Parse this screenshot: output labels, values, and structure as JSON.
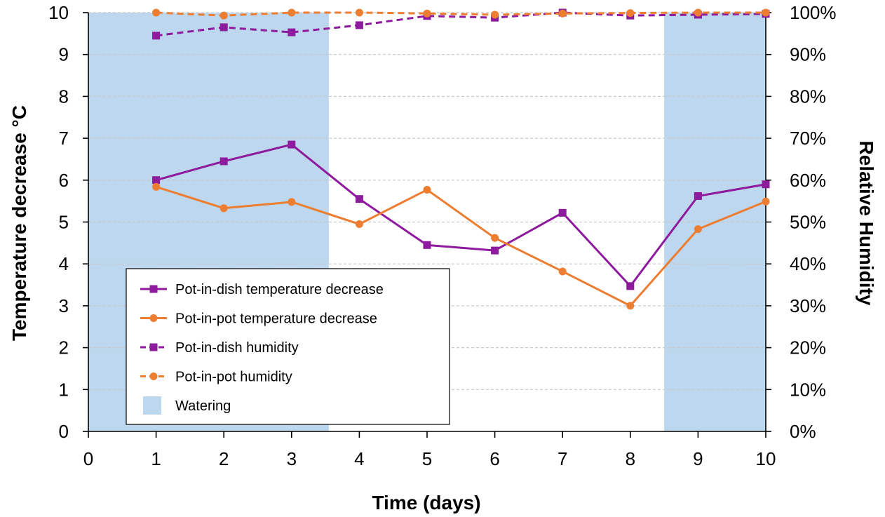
{
  "chart_data": {
    "type": "line",
    "title": "",
    "xlabel": "Time (days)",
    "ylabel": "Temperature decrease  °C",
    "y2label": "Relative Humidity",
    "xlim": [
      0,
      10
    ],
    "ylim": [
      0,
      10
    ],
    "y2lim": [
      0,
      100
    ],
    "x_ticks": [
      0,
      1,
      2,
      3,
      4,
      5,
      6,
      7,
      8,
      9,
      10
    ],
    "y_ticks": [
      0,
      1,
      2,
      3,
      4,
      5,
      6,
      7,
      8,
      9,
      10
    ],
    "y2_ticks": [
      "0%",
      "10%",
      "20%",
      "30%",
      "40%",
      "50%",
      "60%",
      "70%",
      "80%",
      "90%",
      "100%"
    ],
    "grid": "horizontal dashed",
    "legend_position": "lower-left",
    "shaded_regions": [
      {
        "name": "Watering",
        "x_start": 0,
        "x_end": 3.55,
        "color": "#bdd7ee"
      },
      {
        "name": "Watering",
        "x_start": 8.5,
        "x_end": 10,
        "color": "#bdd7ee"
      }
    ],
    "x": [
      1,
      2,
      3,
      4,
      5,
      6,
      7,
      8,
      9,
      10
    ],
    "series": [
      {
        "name": "Pot-in-dish temperature decrease",
        "axis": "left",
        "style": "solid",
        "marker": "square",
        "color": "#8e1a9e",
        "values": [
          6.0,
          6.45,
          6.85,
          5.55,
          4.45,
          4.32,
          5.22,
          3.47,
          5.62,
          5.9
        ]
      },
      {
        "name": "Pot-in-pot temperature decrease",
        "axis": "left",
        "style": "solid",
        "marker": "circle",
        "color": "#ed7d31",
        "values": [
          5.84,
          5.33,
          5.48,
          4.95,
          5.77,
          4.62,
          3.82,
          3.0,
          4.83,
          5.49
        ]
      },
      {
        "name": "Pot-in-dish humidity",
        "axis": "right",
        "style": "dashed",
        "marker": "square",
        "color": "#8e1a9e",
        "values": [
          94.5,
          96.5,
          95.3,
          97,
          99.2,
          98.8,
          100,
          99.3,
          99.5,
          99.7
        ]
      },
      {
        "name": "Pot-in-pot humidity",
        "axis": "right",
        "style": "dashed",
        "marker": "circle",
        "color": "#ed7d31",
        "values": [
          100,
          99.3,
          100,
          100,
          99.8,
          99.5,
          99.8,
          99.9,
          100,
          100
        ]
      }
    ],
    "legend": [
      {
        "label": "Pot-in-dish temperature decrease",
        "kind": "line",
        "style": "solid",
        "marker": "square",
        "color": "#8e1a9e"
      },
      {
        "label": "Pot-in-pot temperature decrease",
        "kind": "line",
        "style": "solid",
        "marker": "circle",
        "color": "#ed7d31"
      },
      {
        "label": "Pot-in-dish humidity",
        "kind": "line",
        "style": "dashed",
        "marker": "square",
        "color": "#8e1a9e"
      },
      {
        "label": "Pot-in-pot humidity",
        "kind": "line",
        "style": "dashed",
        "marker": "circle",
        "color": "#ed7d31"
      },
      {
        "label": "Watering",
        "kind": "patch",
        "color": "#bdd7ee"
      }
    ]
  }
}
